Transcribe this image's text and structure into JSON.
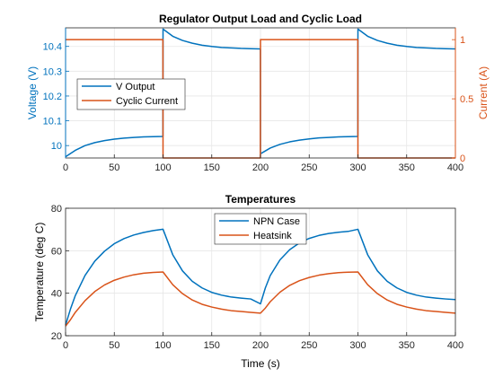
{
  "chart_data": [
    {
      "type": "line",
      "title": "Regulator Output Load and Cyclic Load",
      "xlabel": "",
      "xlim": [
        0,
        400
      ],
      "xticks": [
        0,
        50,
        100,
        150,
        200,
        250,
        300,
        350,
        400
      ],
      "grid": true,
      "legend_placement": "left",
      "y_left": {
        "label": "Voltage (V)",
        "ylim": [
          9.95,
          10.475
        ],
        "ticks": [
          10,
          10.1,
          10.2,
          10.3,
          10.4
        ],
        "tick_labels": [
          "10",
          "10.1",
          "10.2",
          "10.3",
          "10.4"
        ],
        "color": "#0072BD"
      },
      "y_right": {
        "label": "Current (A)",
        "ylim": [
          0,
          1.1
        ],
        "ticks": [
          0,
          0.5,
          1
        ],
        "tick_labels": [
          "0",
          "0.5",
          "1"
        ],
        "color": "#D95319"
      },
      "series": [
        {
          "name": "V Output",
          "axis": "left",
          "color": "#0072BD",
          "x": [
            0,
            10,
            20,
            30,
            40,
            50,
            60,
            70,
            80,
            90,
            99.9,
            100,
            110,
            120,
            130,
            140,
            150,
            160,
            170,
            180,
            190,
            199.9,
            200,
            210,
            220,
            230,
            240,
            250,
            260,
            270,
            280,
            290,
            299.9,
            300,
            310,
            320,
            330,
            340,
            350,
            360,
            370,
            380,
            390,
            400
          ],
          "values": [
            9.955,
            9.981,
            10.0,
            10.012,
            10.02,
            10.026,
            10.03,
            10.033,
            10.035,
            10.036,
            10.037,
            10.47,
            10.441,
            10.424,
            10.413,
            10.405,
            10.4,
            10.396,
            10.394,
            10.392,
            10.391,
            10.39,
            9.967,
            9.99,
            10.005,
            10.015,
            10.022,
            10.027,
            10.031,
            10.033,
            10.035,
            10.036,
            10.037,
            10.47,
            10.441,
            10.424,
            10.413,
            10.405,
            10.4,
            10.396,
            10.394,
            10.392,
            10.391,
            10.39
          ]
        },
        {
          "name": "Cyclic Current",
          "axis": "right",
          "color": "#D95319",
          "x": [
            0,
            99.9,
            100,
            199.9,
            200,
            299.9,
            300,
            400
          ],
          "values": [
            1,
            1,
            0,
            0,
            1,
            1,
            0,
            0
          ]
        }
      ]
    },
    {
      "type": "line",
      "title": "Temperatures",
      "xlabel": "Time (s)",
      "ylabel": "Temperature (deg C)",
      "xlim": [
        0,
        400
      ],
      "ylim": [
        20,
        80
      ],
      "xticks": [
        0,
        50,
        100,
        150,
        200,
        250,
        300,
        350,
        400
      ],
      "yticks": [
        20,
        40,
        60,
        80
      ],
      "grid": true,
      "legend_placement": "top",
      "series": [
        {
          "name": "NPN Case",
          "color": "#0072BD",
          "x": [
            0,
            5,
            10,
            20,
            30,
            40,
            50,
            60,
            70,
            80,
            90,
            100,
            110,
            120,
            130,
            140,
            150,
            160,
            170,
            180,
            190,
            200,
            205,
            210,
            220,
            230,
            240,
            250,
            260,
            270,
            280,
            290,
            300,
            310,
            320,
            330,
            340,
            350,
            360,
            370,
            380,
            390,
            400
          ],
          "values": [
            25,
            32.5,
            38.9,
            48.4,
            55.1,
            59.8,
            63.3,
            65.7,
            67.4,
            68.6,
            69.5,
            70.1,
            58.1,
            50.5,
            45.6,
            42.5,
            40.4,
            39.1,
            38.2,
            37.7,
            37.3,
            35,
            42.5,
            48.3,
            55.7,
            60.5,
            63.7,
            65.8,
            67.2,
            68.1,
            68.7,
            69.1,
            70.1,
            58.1,
            50.5,
            45.6,
            42.5,
            40.4,
            39.1,
            38.2,
            37.7,
            37.3,
            37
          ]
        },
        {
          "name": "Heatsink",
          "color": "#D95319",
          "x": [
            0,
            5,
            10,
            20,
            30,
            40,
            50,
            60,
            70,
            80,
            90,
            100,
            110,
            120,
            130,
            140,
            150,
            160,
            170,
            180,
            190,
            200,
            205,
            210,
            220,
            230,
            240,
            250,
            260,
            270,
            280,
            290,
            300,
            310,
            320,
            330,
            340,
            350,
            360,
            370,
            380,
            390,
            400
          ],
          "values": [
            24.5,
            27.5,
            31,
            36.5,
            40.8,
            43.9,
            46.1,
            47.6,
            48.7,
            49.4,
            49.8,
            50,
            44,
            39.8,
            36.8,
            34.8,
            33.5,
            32.5,
            31.8,
            31.4,
            31,
            30.6,
            33,
            36,
            40.5,
            43.7,
            45.9,
            47.4,
            48.5,
            49.2,
            49.7,
            49.9,
            50,
            44,
            39.8,
            36.8,
            34.8,
            33.5,
            32.5,
            31.8,
            31.4,
            31,
            30.6
          ]
        }
      ]
    }
  ]
}
